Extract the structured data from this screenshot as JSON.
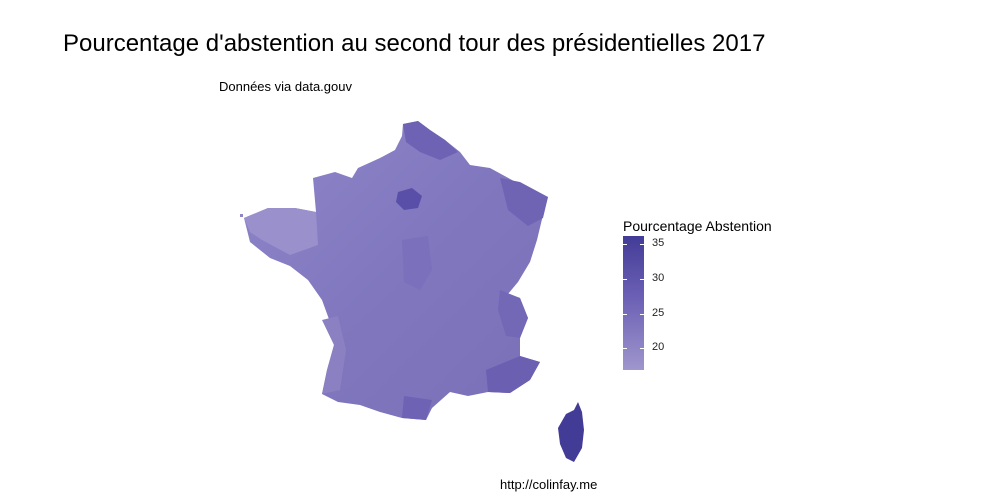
{
  "title": "Pourcentage d'abstention au second tour des présidentielles 2017",
  "subtitle": "Données via data.gouv",
  "caption": "http://colinfay.me",
  "legend": {
    "title": "Pourcentage Abstention",
    "ticks": [
      "35",
      "30",
      "25",
      "20"
    ]
  },
  "colors": {
    "low": "#9f96cd",
    "mid": "#6a5fb4",
    "high": "#433c97"
  },
  "chart_data": {
    "type": "choropleth",
    "variable": "Pourcentage Abstention",
    "scale_min": 20,
    "scale_max": 36,
    "legend_ticks": [
      20,
      25,
      30,
      35
    ]
  }
}
